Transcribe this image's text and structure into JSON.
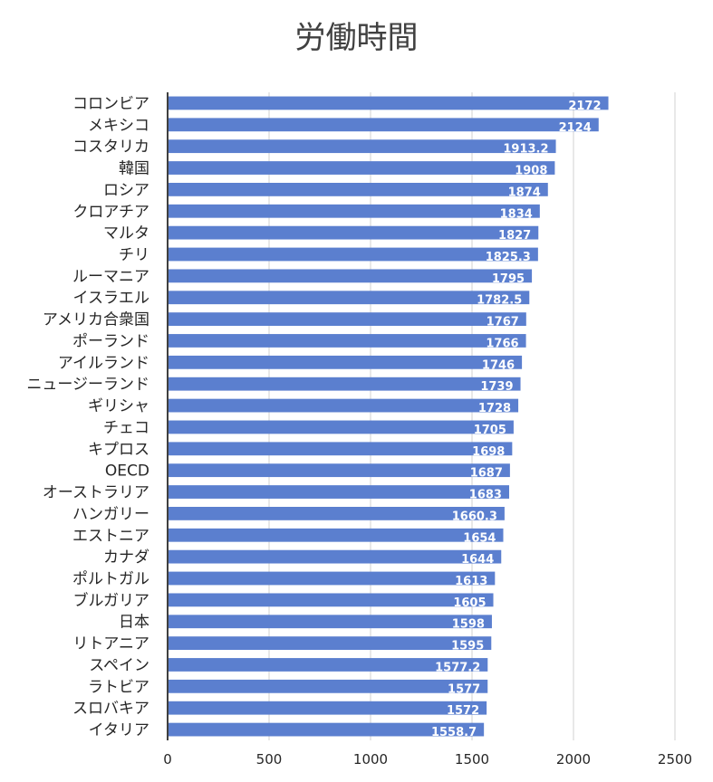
{
  "chart_data": {
    "type": "bar",
    "orientation": "horizontal",
    "title": "労働時間",
    "xlabel": "",
    "ylabel": "",
    "xlim": [
      0,
      2500
    ],
    "x_ticks": [
      0,
      500,
      1000,
      1500,
      2000,
      2500
    ],
    "grid": true,
    "legend": "none",
    "bar_color": "#5b7fcf",
    "categories": [
      "コロンビア",
      "メキシコ",
      "コスタリカ",
      "韓国",
      "ロシア",
      "クロアチア",
      "マルタ",
      "チリ",
      "ルーマニア",
      "イスラエル",
      "アメリカ合衆国",
      "ポーランド",
      "アイルランド",
      "ニュージーランド",
      "ギリシャ",
      "チェコ",
      "キプロス",
      "OECD",
      "オーストラリア",
      "ハンガリー",
      "エストニア",
      "カナダ",
      "ポルトガル",
      "ブルガリア",
      "日本",
      "リトアニア",
      "スペイン",
      "ラトビア",
      "スロバキア",
      "イタリア"
    ],
    "values": [
      2172,
      2124,
      1913.2,
      1908,
      1874,
      1834,
      1827,
      1825.3,
      1795,
      1782.5,
      1767,
      1766,
      1746,
      1739,
      1728,
      1705,
      1698,
      1687,
      1683,
      1660.3,
      1654,
      1644,
      1613,
      1605,
      1598,
      1595,
      1577.2,
      1577,
      1572,
      1558.7
    ]
  }
}
